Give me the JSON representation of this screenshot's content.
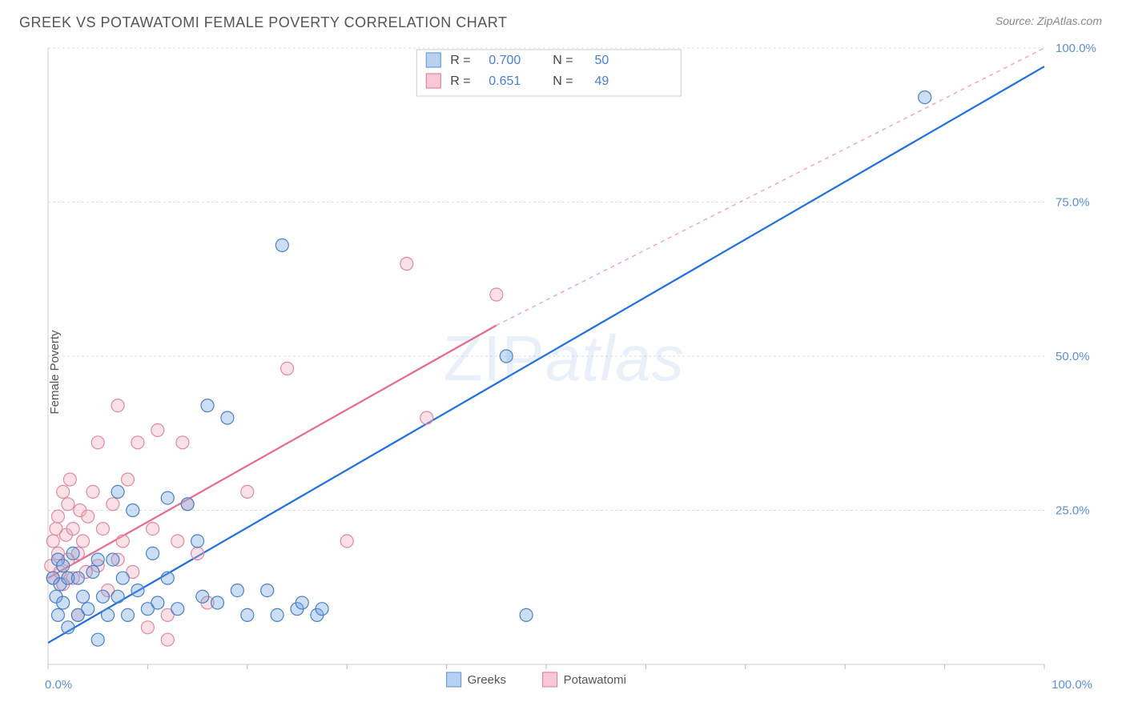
{
  "header": {
    "title": "GREEK VS POTAWATOMI FEMALE POVERTY CORRELATION CHART",
    "source_text": "Source: ZipAtlas.com"
  },
  "watermark": {
    "left": "ZIP",
    "right": "atlas"
  },
  "chart": {
    "type": "scatter",
    "background_color": "#ffffff",
    "plot_border_color": "#cccccc",
    "grid_color": "#dddddd",
    "tick_color": "#bbbbbb",
    "axis_label_color": "#555555",
    "tick_label_color": "#5b8fd6",
    "ylabel": "Female Poverty",
    "xlim": [
      0,
      100
    ],
    "ylim": [
      0,
      100
    ],
    "yticks": [
      25,
      50,
      75,
      100
    ],
    "ytick_labels": [
      "25.0%",
      "50.0%",
      "75.0%",
      "100.0%"
    ],
    "x_axis_labels": {
      "min": "0.0%",
      "max": "100.0%"
    },
    "label_fontsize": 15,
    "tick_fontsize": 15,
    "marker_radius": 8,
    "marker_stroke_width": 1.2,
    "marker_fill_opacity": 0.35,
    "trend_line_width": 2.2,
    "series": [
      {
        "id": "greeks",
        "label": "Greeks",
        "color": "#6aa0e0",
        "stroke": "#4a80c8",
        "line_color": "#1f6fe0",
        "trend": {
          "x1": 0,
          "y1": 3.5,
          "x2": 100,
          "y2": 97
        },
        "points": [
          [
            0.5,
            14
          ],
          [
            0.8,
            11
          ],
          [
            1,
            8
          ],
          [
            1,
            17
          ],
          [
            1.2,
            13
          ],
          [
            1.5,
            10
          ],
          [
            1.5,
            16
          ],
          [
            2,
            14
          ],
          [
            2,
            6
          ],
          [
            2.5,
            18
          ],
          [
            3,
            8
          ],
          [
            3,
            14
          ],
          [
            3.5,
            11
          ],
          [
            4,
            9
          ],
          [
            4.5,
            15
          ],
          [
            5,
            4
          ],
          [
            5,
            17
          ],
          [
            5.5,
            11
          ],
          [
            6,
            8
          ],
          [
            6.5,
            17
          ],
          [
            7,
            11
          ],
          [
            7,
            28
          ],
          [
            7.5,
            14
          ],
          [
            8,
            8
          ],
          [
            8.5,
            25
          ],
          [
            9,
            12
          ],
          [
            10,
            9
          ],
          [
            10.5,
            18
          ],
          [
            11,
            10
          ],
          [
            12,
            27
          ],
          [
            12,
            14
          ],
          [
            13,
            9
          ],
          [
            14,
            26
          ],
          [
            15,
            20
          ],
          [
            15.5,
            11
          ],
          [
            16,
            42
          ],
          [
            17,
            10
          ],
          [
            18,
            40
          ],
          [
            19,
            12
          ],
          [
            20,
            8
          ],
          [
            22,
            12
          ],
          [
            23,
            8
          ],
          [
            23.5,
            68
          ],
          [
            25,
            9
          ],
          [
            25.5,
            10
          ],
          [
            27,
            8
          ],
          [
            27.5,
            9
          ],
          [
            46,
            50
          ],
          [
            48,
            8
          ],
          [
            88,
            92
          ]
        ]
      },
      {
        "id": "potawatomi",
        "label": "Potawatomi",
        "color": "#f2a8b8",
        "stroke": "#e088a0",
        "line_color": "#e86a8a",
        "dashed_line_color": "#f2a8b8",
        "trend": {
          "x1": 0,
          "y1": 14,
          "x2": 45,
          "y2": 55
        },
        "dashed_trend": {
          "x1": 45,
          "y1": 55,
          "x2": 100,
          "y2": 100
        },
        "points": [
          [
            0.3,
            16
          ],
          [
            0.5,
            14
          ],
          [
            0.5,
            20
          ],
          [
            0.8,
            22
          ],
          [
            1,
            18
          ],
          [
            1,
            24
          ],
          [
            1.2,
            15
          ],
          [
            1.5,
            28
          ],
          [
            1.5,
            13
          ],
          [
            1.8,
            21
          ],
          [
            2,
            17
          ],
          [
            2,
            26
          ],
          [
            2.2,
            30
          ],
          [
            2.5,
            14
          ],
          [
            2.5,
            22
          ],
          [
            3,
            18
          ],
          [
            3,
            8
          ],
          [
            3.2,
            25
          ],
          [
            3.5,
            20
          ],
          [
            3.8,
            15
          ],
          [
            4,
            24
          ],
          [
            4.5,
            28
          ],
          [
            5,
            16
          ],
          [
            5,
            36
          ],
          [
            5.5,
            22
          ],
          [
            6,
            12
          ],
          [
            6.5,
            26
          ],
          [
            7,
            42
          ],
          [
            7,
            17
          ],
          [
            7.5,
            20
          ],
          [
            8,
            30
          ],
          [
            8.5,
            15
          ],
          [
            9,
            36
          ],
          [
            10,
            6
          ],
          [
            10.5,
            22
          ],
          [
            11,
            38
          ],
          [
            12,
            8
          ],
          [
            13,
            20
          ],
          [
            13.5,
            36
          ],
          [
            14,
            26
          ],
          [
            15,
            18
          ],
          [
            16,
            10
          ],
          [
            20,
            28
          ],
          [
            24,
            48
          ],
          [
            30,
            20
          ],
          [
            36,
            65
          ],
          [
            38,
            40
          ],
          [
            45,
            60
          ],
          [
            12,
            4
          ]
        ]
      }
    ],
    "stats_box": {
      "border_color": "#cccccc",
      "bg": "#ffffff",
      "text_color": "#444444",
      "value_color": "#4a80d8",
      "fontsize": 16,
      "rows": [
        {
          "swatch_fill": "#b8d0f0",
          "swatch_stroke": "#6aa0e0",
          "r_label": "R =",
          "r_value": "0.700",
          "n_label": "N =",
          "n_value": "50"
        },
        {
          "swatch_fill": "#f8c8d4",
          "swatch_stroke": "#e088a0",
          "r_label": "R =",
          "r_value": "0.651",
          "n_label": "N =",
          "n_value": "49"
        }
      ]
    },
    "legend": {
      "fontsize": 15,
      "text_color": "#555555",
      "items": [
        {
          "fill": "#b8d0f0",
          "stroke": "#6aa0e0",
          "label": "Greeks"
        },
        {
          "fill": "#f8c8d4",
          "stroke": "#e088a0",
          "label": "Potawatomi"
        }
      ]
    }
  }
}
